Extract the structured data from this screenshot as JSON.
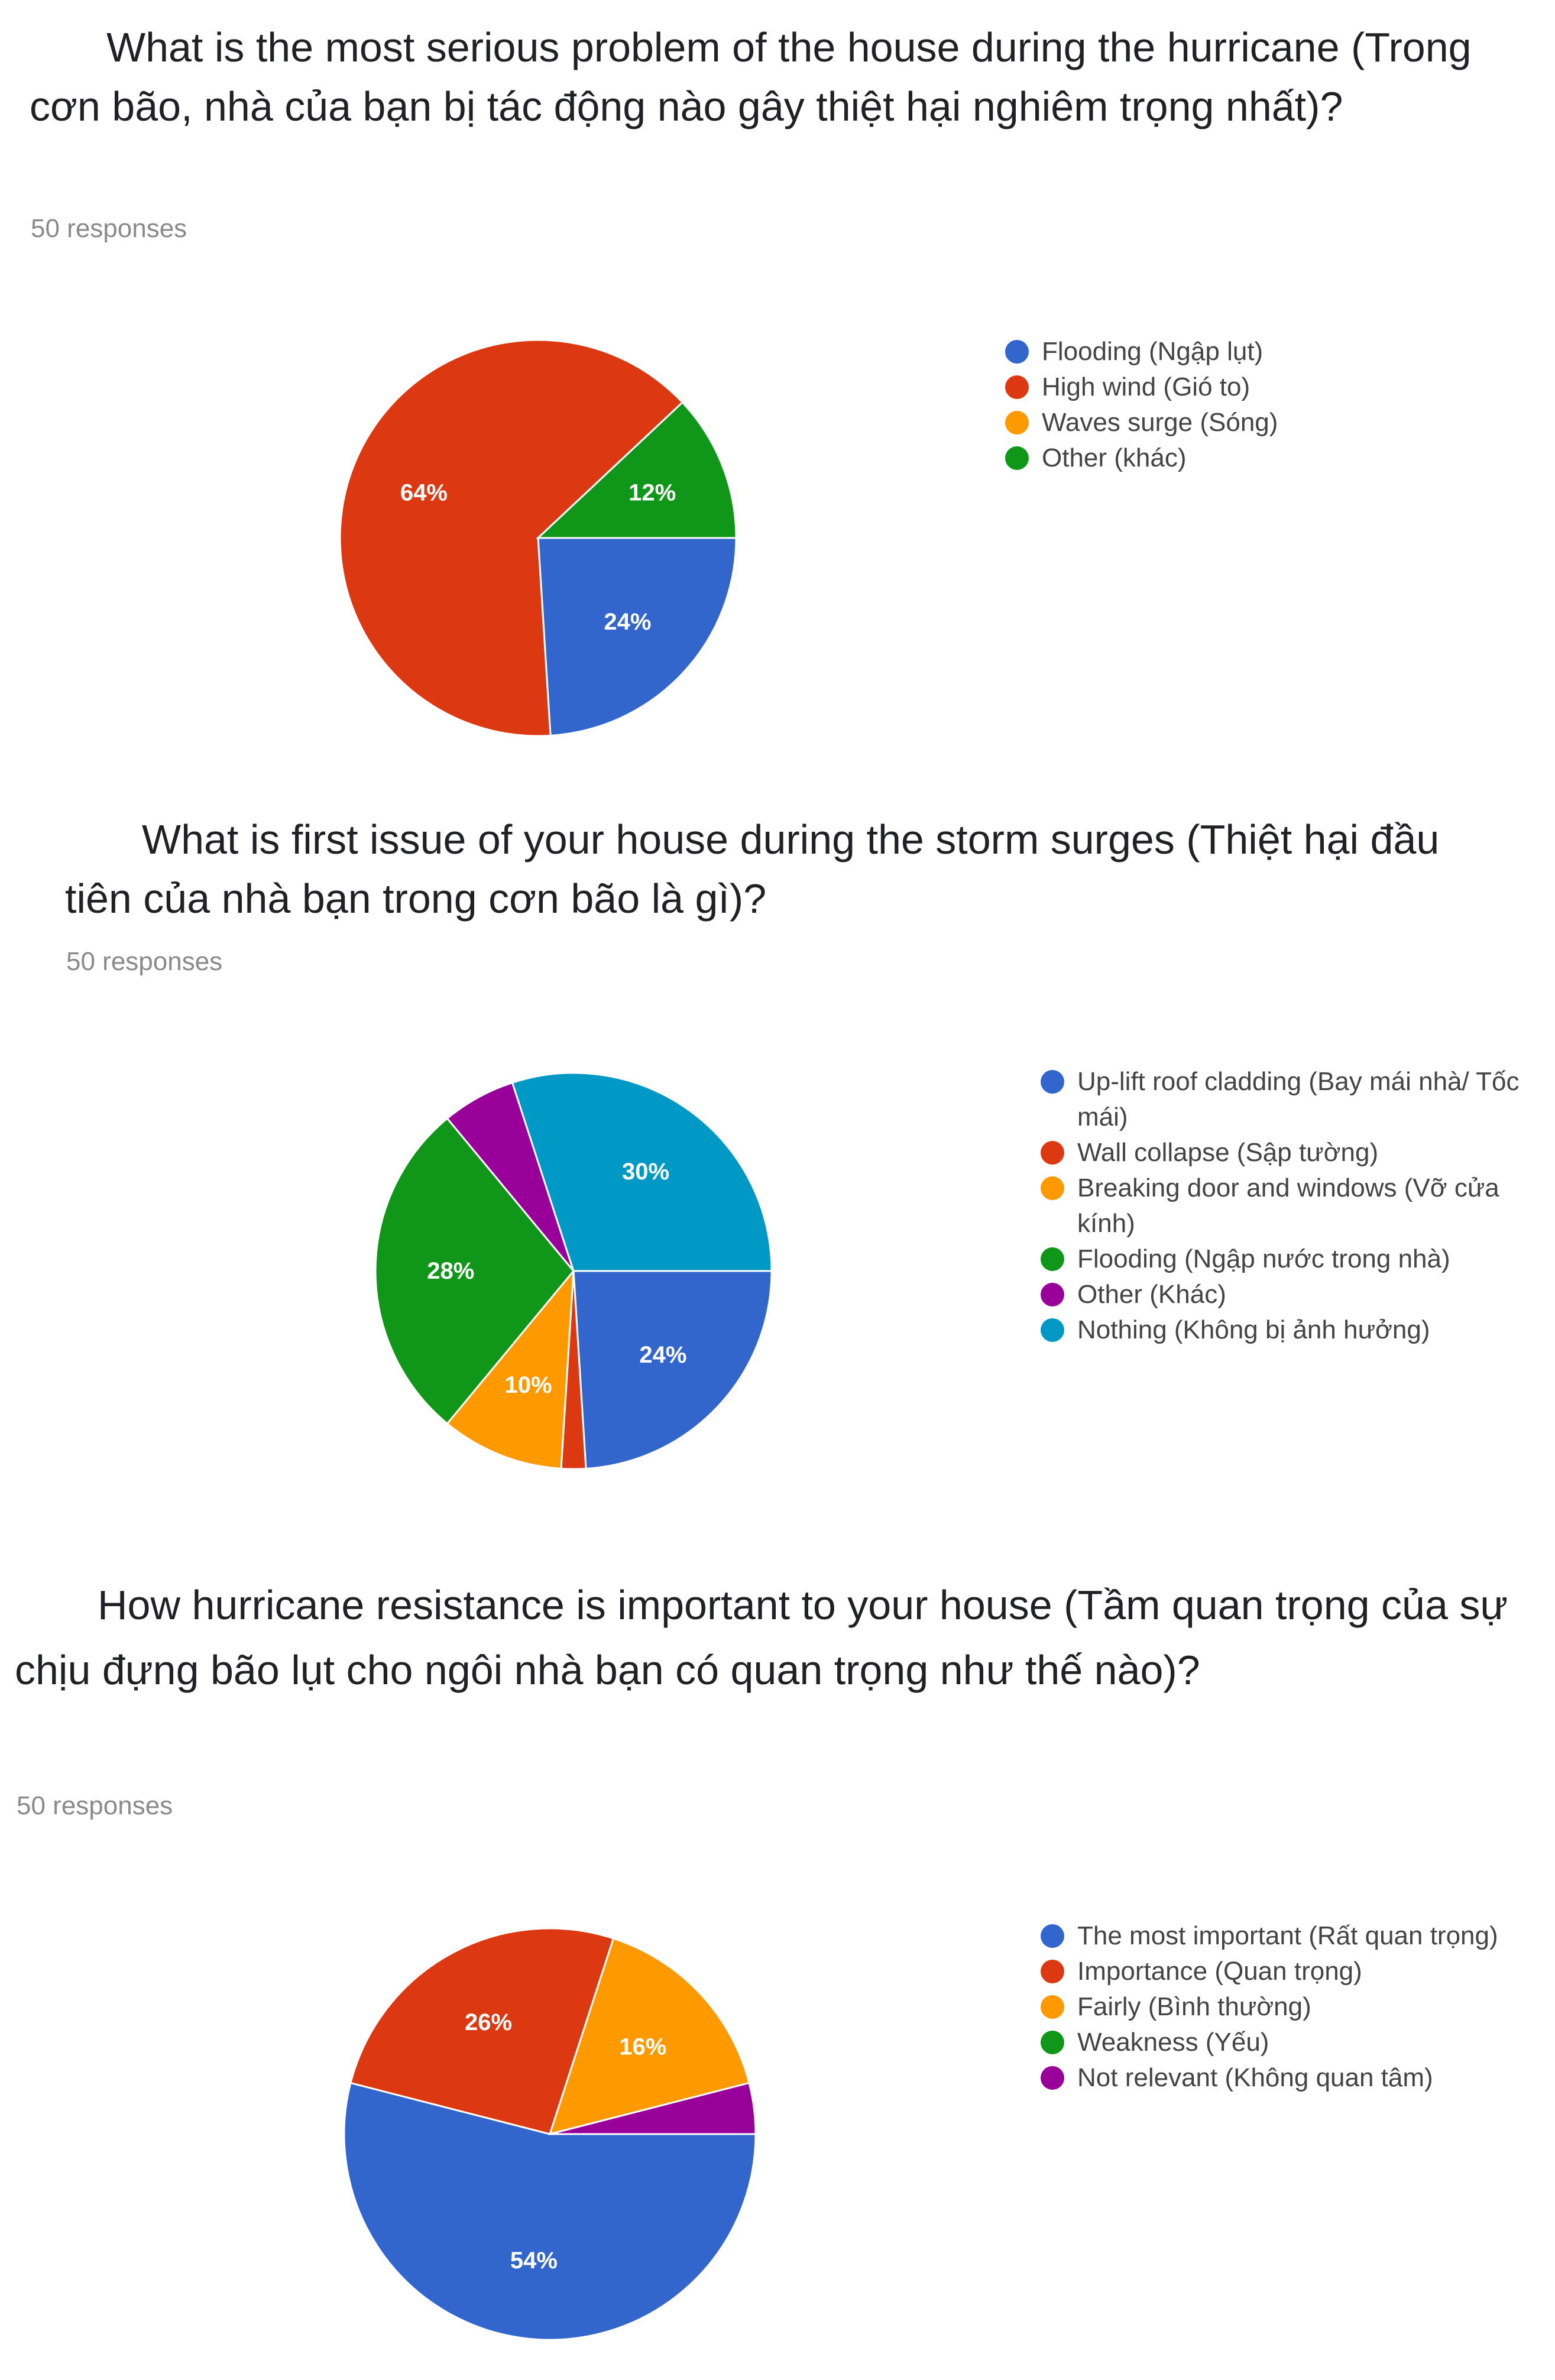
{
  "charts": [
    {
      "title": "What is the most serious problem of the house during the hurricane (Trong cơn bão, nhà của bạn bị tác động nào gây thiệt hại nghiêm trọng nhất)?",
      "responses_text": "50 responses"
    },
    {
      "title": "What is first issue of your house during the storm surges (Thiệt hại đầu tiên của nhà bạn trong cơn bão là gì)?",
      "responses_text": "50 responses"
    },
    {
      "title": "How hurricane resistance is important to your house (Tầm quan trọng của sự chịu đựng bão lụt cho ngôi nhà bạn có quan trọng như thế nào)?",
      "responses_text": "50 responses"
    }
  ],
  "chart_data": [
    {
      "type": "pie",
      "title": "What is the most serious problem of the house during the hurricane (Trong cơn bão, nhà của bạn bị tác động nào gây thiệt hại nghiêm trọng nhất)?",
      "categories": [
        "Flooding (Ngập lụt)",
        "High wind (Gió to)",
        "Waves surge (Sóng)",
        "Other (khác)"
      ],
      "values": [
        24,
        64,
        0,
        12
      ],
      "value_labels": [
        "24%",
        "64%",
        "",
        "12%"
      ],
      "colors": [
        "#3366cc",
        "#dc3912",
        "#ff9900",
        "#109618"
      ],
      "legend": "right"
    },
    {
      "type": "pie",
      "title": "What is first issue of your house during the storm surges (Thiệt hại đầu tiên của nhà bạn trong cơn bão là gì)?",
      "categories": [
        "Up-lift roof cladding (Bay mái nhà/ Tốc mái)",
        "Wall collapse (Sập tường)",
        "Breaking door and windows (Vỡ cửa kính)",
        "Flooding (Ngập nước trong nhà)",
        "Other (Khác)",
        "Nothing (Không bị ảnh hưởng)"
      ],
      "values": [
        24,
        2,
        10,
        28,
        6,
        30
      ],
      "value_labels": [
        "24%",
        "",
        "10%",
        "28%",
        "",
        "30%"
      ],
      "colors": [
        "#3366cc",
        "#dc3912",
        "#ff9900",
        "#109618",
        "#990099",
        "#0099c6"
      ],
      "legend": "right"
    },
    {
      "type": "pie",
      "title": "How hurricane resistance is important to your house (Tầm quan trọng của sự chịu đựng bão lụt cho ngôi nhà bạn có quan trọng như thế nào)?",
      "categories": [
        "The most important (Rất quan trọng)",
        "Importance (Quan trọng)",
        "Fairly (Bình thường)",
        "Weakness (Yếu)",
        "Not relevant (Không quan tâm)"
      ],
      "values": [
        54,
        26,
        16,
        0,
        4
      ],
      "value_labels": [
        "54%",
        "26%",
        "16%",
        "",
        ""
      ],
      "colors": [
        "#3366cc",
        "#dc3912",
        "#ff9900",
        "#109618",
        "#990099"
      ],
      "legend": "right"
    }
  ]
}
